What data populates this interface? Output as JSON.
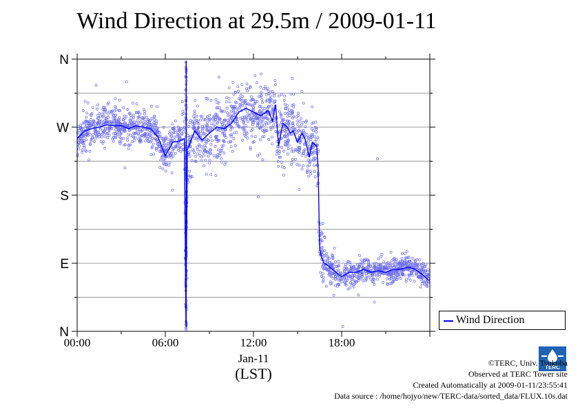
{
  "page": {
    "title": "Wind Direction at 29.5m / 2009-01-11"
  },
  "chart_data": {
    "type": "scatter",
    "title": "Wind Direction at 29.5m / 2009-01-11",
    "xlabel": "(LST)",
    "ylabel": "",
    "x_date_label": "Jan-11",
    "x_ticks": [
      {
        "hour": 0,
        "label": "00:00"
      },
      {
        "hour": 6,
        "label": "06:00"
      },
      {
        "hour": 12,
        "label": "12:00"
      },
      {
        "hour": 18,
        "label": "18:00"
      }
    ],
    "y_ticks": [
      {
        "deg": 0,
        "label": "N"
      },
      {
        "deg": 90,
        "label": "E"
      },
      {
        "deg": 180,
        "label": "S"
      },
      {
        "deg": 270,
        "label": "W"
      },
      {
        "deg": 360,
        "label": "N"
      }
    ],
    "xlim": [
      0,
      24
    ],
    "ylim": [
      0,
      360
    ],
    "grid": true,
    "legend_placement": "right-bottom",
    "series": [
      {
        "name": "Wind Direction",
        "color": "#0000ff",
        "scatter_color": "#6b6bf0",
        "x": [
          0.0,
          0.5,
          1.0,
          1.5,
          2.0,
          2.5,
          3.0,
          3.5,
          4.0,
          4.5,
          5.0,
          5.5,
          6.0,
          6.5,
          7.0,
          7.3,
          7.4,
          7.5,
          8.0,
          8.5,
          9.0,
          9.5,
          10.0,
          10.5,
          11.0,
          11.5,
          12.0,
          12.5,
          13.0,
          13.3,
          13.5,
          13.7,
          14.0,
          14.3,
          14.5,
          14.7,
          15.0,
          15.3,
          15.5,
          15.8,
          16.0,
          16.3,
          16.4,
          16.5,
          16.6,
          16.8,
          17.0,
          17.5,
          18.0,
          18.5,
          19.0,
          19.5,
          20.0,
          20.5,
          21.0,
          21.5,
          22.0,
          22.5,
          23.0,
          23.5,
          23.9
        ],
        "y": [
          255,
          265,
          268,
          270,
          273,
          272,
          272,
          268,
          272,
          270,
          268,
          257,
          232,
          250,
          252,
          255,
          10,
          240,
          265,
          253,
          262,
          270,
          268,
          275,
          290,
          295,
          290,
          285,
          292,
          278,
          300,
          245,
          275,
          270,
          262,
          265,
          250,
          262,
          255,
          230,
          250,
          245,
          215,
          110,
          100,
          90,
          88,
          80,
          72,
          78,
          78,
          82,
          78,
          80,
          78,
          82,
          82,
          85,
          82,
          75,
          68
        ]
      }
    ]
  },
  "legend": {
    "label": "Wind Direction"
  },
  "credits": {
    "line1": "©TERC, Univ. Tsukuba",
    "line2": "Observed at TERC Tower site",
    "line3": "Created Automatically at 2009-01-11/23:55:41",
    "line4": "Data source : /home/hojyo/new/TERC-data/sorted_data/FLUX.10s.dat"
  },
  "logo": {
    "text": "TERC"
  }
}
